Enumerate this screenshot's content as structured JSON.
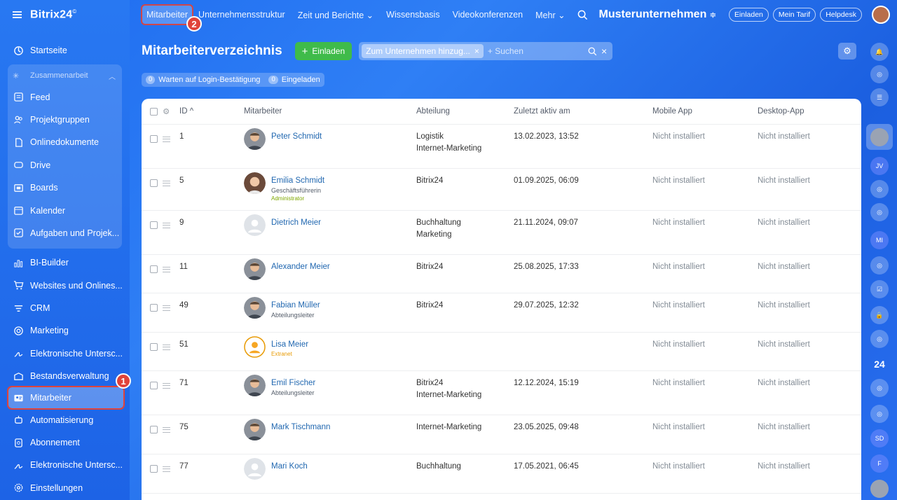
{
  "app": {
    "logo": "Bitrix24",
    "logo_mark": "©"
  },
  "sidebar": {
    "items_top": [
      {
        "label": "Startseite",
        "icon": "home-icon"
      }
    ],
    "group": {
      "title": "Zusammenarbeit",
      "items": [
        {
          "label": "Feed",
          "icon": "feed-icon"
        },
        {
          "label": "Projektgruppen",
          "icon": "groups-icon"
        },
        {
          "label": "Onlinedokumente",
          "icon": "document-icon"
        },
        {
          "label": "Drive",
          "icon": "drive-icon"
        },
        {
          "label": "Boards",
          "icon": "board-icon"
        },
        {
          "label": "Kalender",
          "icon": "calendar-icon"
        },
        {
          "label": "Aufgaben und Projek...",
          "icon": "tasks-icon"
        }
      ]
    },
    "items_bottom": [
      {
        "label": "BI-Builder",
        "icon": "chart-icon"
      },
      {
        "label": "Websites und Onlines...",
        "icon": "cart-icon"
      },
      {
        "label": "CRM",
        "icon": "crm-icon"
      },
      {
        "label": "Marketing",
        "icon": "marketing-icon"
      },
      {
        "label": "Elektronische Untersc...",
        "icon": "signature-icon"
      },
      {
        "label": "Bestandsverwaltung",
        "icon": "inventory-icon"
      },
      {
        "label": "Mitarbeiter",
        "icon": "employees-icon",
        "active": true,
        "marker": "1"
      },
      {
        "label": "Automatisierung",
        "icon": "automation-icon"
      },
      {
        "label": "Abonnement",
        "icon": "subscription-icon"
      },
      {
        "label": "Elektronische Untersc...",
        "icon": "signature-icon"
      },
      {
        "label": "Einstellungen",
        "icon": "settings-icon"
      }
    ]
  },
  "topnav": {
    "tabs": [
      {
        "label": "Mitarbeiter",
        "active": true,
        "marker": "2"
      },
      {
        "label": "Unternehmensstruktur"
      },
      {
        "label": "Zeit und Berichte ⌄"
      },
      {
        "label": "Wissensbasis"
      },
      {
        "label": "Videokonferenzen"
      },
      {
        "label": "Mehr ⌄"
      }
    ],
    "company": "Musterunternehmen",
    "buttons": [
      "Einladen",
      "Mein Tarif",
      "Helpdesk"
    ]
  },
  "header": {
    "title": "Mitarbeiterverzeichnis",
    "invite_button": "Einladen",
    "filter_chip": "Zum Unternehmen hinzug...",
    "search_placeholder": "+ Suchen"
  },
  "quick_filters": [
    {
      "count": "0",
      "label": "Warten auf Login-Bestätigung"
    },
    {
      "count": "0",
      "label": "Eingeladen"
    }
  ],
  "table": {
    "columns": [
      "ID ^",
      "Mitarbeiter",
      "Abteilung",
      "Zuletzt aktiv am",
      "Mobile App",
      "Desktop-App"
    ],
    "rows": [
      {
        "id": "1",
        "name": "Peter Schmidt",
        "role": "",
        "tag": "",
        "dept": [
          "Logistik",
          "Internet-Marketing"
        ],
        "last": "13.02.2023, 13:52",
        "mobile": "Nicht installiert",
        "desktop": "Nicht installiert",
        "avatar": "photo",
        "h": 63
      },
      {
        "id": "5",
        "name": "Emilia Schmidt",
        "role": "Geschäftsführerin",
        "tag": "Administrator",
        "dept": [
          "Bitrix24"
        ],
        "last": "01.09.2025, 06:09",
        "mobile": "Nicht installiert",
        "desktop": "Nicht installiert",
        "avatar": "photo-f",
        "h": 60
      },
      {
        "id": "9",
        "name": "Dietrich Meier",
        "role": "",
        "tag": "",
        "dept": [
          "Buchhaltung",
          "Marketing"
        ],
        "last": "21.11.2024, 09:07",
        "mobile": "Nicht installiert",
        "desktop": "Nicht installiert",
        "avatar": "placeholder",
        "h": 63
      },
      {
        "id": "11",
        "name": "Alexander Meier",
        "role": "",
        "tag": "",
        "dept": [
          "Bitrix24"
        ],
        "last": "25.08.2025, 17:33",
        "mobile": "Nicht installiert",
        "desktop": "Nicht installiert",
        "avatar": "photo",
        "h": 55
      },
      {
        "id": "49",
        "name": "Fabian Müller",
        "role": "Abteilungsleiter",
        "tag": "",
        "dept": [
          "Bitrix24"
        ],
        "last": "29.07.2025, 12:32",
        "mobile": "Nicht installiert",
        "desktop": "Nicht installiert",
        "avatar": "photo",
        "h": 56
      },
      {
        "id": "51",
        "name": "Lisa Meier",
        "role": "",
        "tag": "Extranet",
        "dept": [],
        "last": "",
        "mobile": "Nicht installiert",
        "desktop": "Nicht installiert",
        "avatar": "extranet",
        "h": 55
      },
      {
        "id": "71",
        "name": "Emil Fischer",
        "role": "Abteilungsleiter",
        "tag": "",
        "dept": [
          "Bitrix24",
          "Internet-Marketing"
        ],
        "last": "12.12.2024, 15:19",
        "mobile": "Nicht installiert",
        "desktop": "Nicht installiert",
        "avatar": "photo",
        "h": 63
      },
      {
        "id": "75",
        "name": "Mark Tischmann",
        "role": "",
        "tag": "",
        "dept": [
          "Internet-Marketing"
        ],
        "last": "23.05.2025, 09:48",
        "mobile": "Nicht installiert",
        "desktop": "Nicht installiert",
        "avatar": "photo",
        "h": 56
      },
      {
        "id": "77",
        "name": "Mari Koch",
        "role": "",
        "tag": "",
        "dept": [
          "Buchhaltung"
        ],
        "last": "17.05.2021, 06:45",
        "mobile": "Nicht installiert",
        "desktop": "Nicht installiert",
        "avatar": "placeholder",
        "h": 56
      }
    ]
  },
  "rightbar": {
    "items": [
      {
        "icon": "bell-icon",
        "label": ""
      },
      {
        "icon": "copilot-icon",
        "label": ""
      },
      {
        "icon": "chat-icon",
        "label": ""
      },
      {
        "icon": "user-avatar",
        "label": ""
      },
      {
        "icon": "contact-avatar",
        "label": "JV"
      },
      {
        "icon": "copilot-icon",
        "label": ""
      },
      {
        "icon": "copilot-icon",
        "label": ""
      },
      {
        "icon": "contact-avatar",
        "label": "MI"
      },
      {
        "icon": "copilot-icon",
        "label": ""
      },
      {
        "icon": "tasks-icon",
        "label": ""
      },
      {
        "icon": "lock-icon",
        "label": ""
      },
      {
        "icon": "copilot-icon",
        "label": ""
      },
      {
        "icon": "bitrix-icon",
        "label": "24"
      },
      {
        "icon": "copilot-icon",
        "label": ""
      },
      {
        "icon": "copilot-icon",
        "label": ""
      },
      {
        "icon": "contact-avatar",
        "label": "SD"
      },
      {
        "icon": "contact-avatar",
        "label": "F"
      },
      {
        "icon": "user-avatar",
        "label": ""
      }
    ]
  },
  "colors": {
    "accent": "#2067b0",
    "highlight": "#e0433a",
    "invite": "#3fbb4a",
    "admin": "#7fa800",
    "extranet": "#e89b06"
  }
}
